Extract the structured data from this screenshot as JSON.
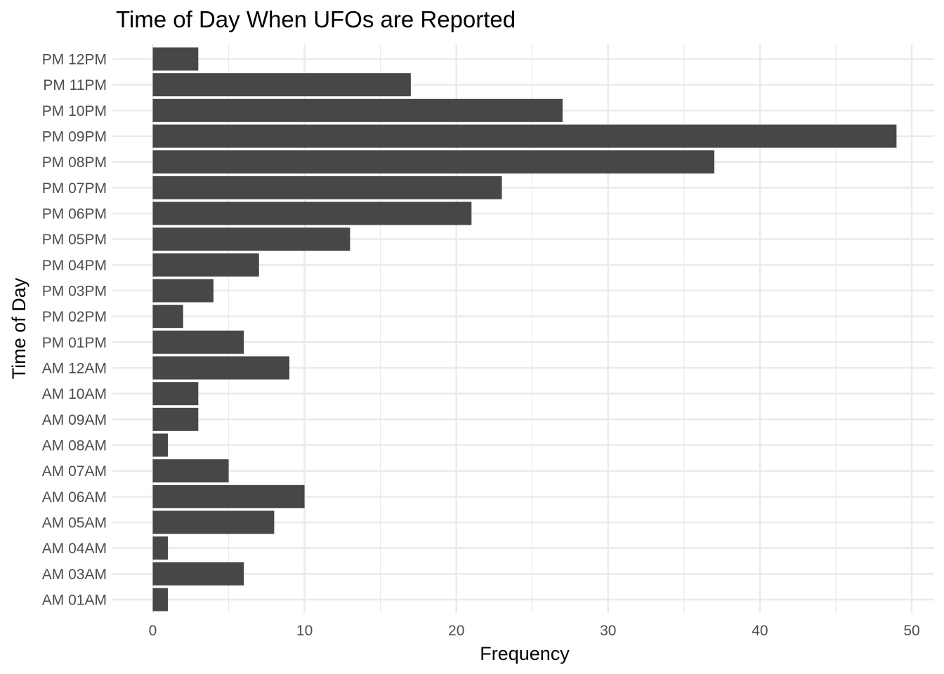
{
  "chart_data": {
    "type": "bar",
    "orientation": "horizontal",
    "title": "Time of Day When UFOs are Reported",
    "xlabel": "Frequency",
    "ylabel": "Time of Day",
    "categories": [
      "AM 01AM",
      "AM 03AM",
      "AM 04AM",
      "AM 05AM",
      "AM 06AM",
      "AM 07AM",
      "AM 08AM",
      "AM 09AM",
      "AM 10AM",
      "AM 12AM",
      "PM 01PM",
      "PM 02PM",
      "PM 03PM",
      "PM 04PM",
      "PM 05PM",
      "PM 06PM",
      "PM 07PM",
      "PM 08PM",
      "PM 09PM",
      "PM 10PM",
      "PM 11PM",
      "PM 12PM"
    ],
    "values": [
      1,
      6,
      1,
      8,
      10,
      5,
      1,
      3,
      3,
      9,
      6,
      2,
      4,
      7,
      13,
      21,
      23,
      37,
      49,
      27,
      17,
      3
    ],
    "xlim": [
      0,
      50
    ],
    "x_ticks": [
      0,
      10,
      20,
      30,
      40,
      50
    ],
    "bar_color": "#474747",
    "grid": true,
    "legend": "none"
  }
}
